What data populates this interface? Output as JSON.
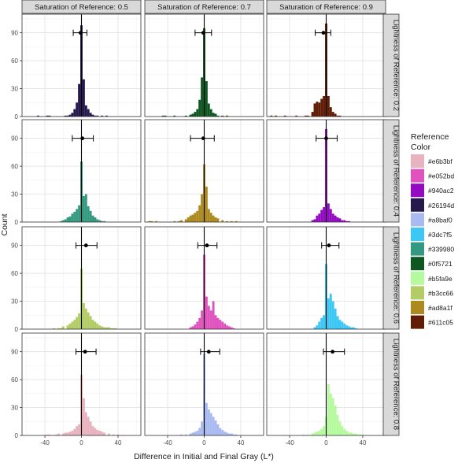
{
  "chart_data": {
    "type": "histogram-facet",
    "xlabel": "Difference in Initial and Final Gray (L*)",
    "ylabel": "Count",
    "x_ticks": [
      -40,
      0,
      40
    ],
    "y_ticks": [
      0,
      30,
      60,
      90
    ],
    "xlim": [
      -65,
      65
    ],
    "ylim": [
      0,
      110
    ],
    "col_strips": [
      "Saturation of Reference: 0.5",
      "Saturation of Reference: 0.7",
      "Saturation of Reference: 0.9"
    ],
    "row_strips": [
      "Lightness of Reference: 0.2",
      "Lightness of Reference: 0.4",
      "Lightness of Reference: 0.6",
      "Lightness of Reference: 0.8"
    ],
    "grid": true,
    "legend": {
      "title": "Reference\nColor",
      "title_lines": [
        "Reference",
        "Color"
      ],
      "position": "right",
      "entries": [
        "#e6b3bf",
        "#e052bd",
        "#940ac2",
        "#26194d",
        "#a8baf0",
        "#3dc7f5",
        "#339980",
        "#0f5721",
        "#b5fa9e",
        "#b3cc66",
        "#ad8a1f",
        "#611c05"
      ]
    },
    "bin_width": 2.5,
    "panels": [
      {
        "row": 0,
        "col": 0,
        "color": "#26194d",
        "mean": -1,
        "ci": [
          -9,
          6
        ],
        "bins": [
          [
            -47.5,
            1
          ],
          [
            -37.5,
            1
          ],
          [
            -35,
            1
          ],
          [
            -17.5,
            1
          ],
          [
            -15,
            1
          ],
          [
            -12.5,
            2
          ],
          [
            -10,
            4
          ],
          [
            -7.5,
            8
          ],
          [
            -5,
            15
          ],
          [
            -2.5,
            35
          ],
          [
            0,
            98
          ],
          [
            2.5,
            40
          ],
          [
            5,
            12
          ],
          [
            7.5,
            8
          ],
          [
            10,
            4
          ],
          [
            12.5,
            2
          ],
          [
            15,
            1
          ],
          [
            17.5,
            1
          ],
          [
            22.5,
            1
          ],
          [
            27.5,
            1
          ]
        ]
      },
      {
        "row": 0,
        "col": 1,
        "color": "#0f5721",
        "mean": -1,
        "ci": [
          -10,
          8
        ],
        "bins": [
          [
            -45,
            1
          ],
          [
            -42.5,
            1
          ],
          [
            -32.5,
            1
          ],
          [
            -20,
            1
          ],
          [
            -15,
            2
          ],
          [
            -12.5,
            3
          ],
          [
            -10,
            5
          ],
          [
            -7.5,
            8
          ],
          [
            -5,
            18
          ],
          [
            -2.5,
            42
          ],
          [
            0,
            95
          ],
          [
            2.5,
            38
          ],
          [
            5,
            14
          ],
          [
            7.5,
            8
          ],
          [
            10,
            4
          ],
          [
            12.5,
            3
          ],
          [
            15,
            1
          ],
          [
            20,
            1
          ],
          [
            25,
            1
          ]
        ]
      },
      {
        "row": 0,
        "col": 2,
        "color": "#611c05",
        "mean": -3,
        "ci": [
          -12,
          5
        ],
        "bins": [
          [
            -60,
            1
          ],
          [
            -55,
            1
          ],
          [
            -45,
            1
          ],
          [
            -32.5,
            1
          ],
          [
            -22.5,
            1
          ],
          [
            -20,
            1
          ],
          [
            -15,
            5
          ],
          [
            -12.5,
            14
          ],
          [
            -10,
            16
          ],
          [
            -7.5,
            15
          ],
          [
            -5,
            19
          ],
          [
            -2.5,
            22
          ],
          [
            0,
            100
          ],
          [
            2.5,
            22
          ],
          [
            5,
            10
          ],
          [
            7.5,
            5
          ],
          [
            10,
            3
          ],
          [
            12.5,
            1
          ],
          [
            15,
            1
          ]
        ]
      },
      {
        "row": 1,
        "col": 0,
        "color": "#339980",
        "mean": 1,
        "ci": [
          -10,
          13
        ],
        "bins": [
          [
            -22.5,
            1
          ],
          [
            -20,
            2
          ],
          [
            -17.5,
            3
          ],
          [
            -15,
            5
          ],
          [
            -12.5,
            6
          ],
          [
            -10,
            9
          ],
          [
            -7.5,
            11
          ],
          [
            -5,
            14
          ],
          [
            -2.5,
            18
          ],
          [
            0,
            65
          ],
          [
            2.5,
            28
          ],
          [
            5,
            30
          ],
          [
            7.5,
            17
          ],
          [
            10,
            12
          ],
          [
            12.5,
            7
          ],
          [
            15,
            5
          ],
          [
            17.5,
            3
          ],
          [
            20,
            2
          ],
          [
            22.5,
            1
          ],
          [
            25,
            1
          ]
        ]
      },
      {
        "row": 1,
        "col": 1,
        "color": "#ad8a1f",
        "mean": -1,
        "ci": [
          -15,
          11
        ],
        "bins": [
          [
            -60,
            1
          ],
          [
            -57.5,
            1
          ],
          [
            -52.5,
            1
          ],
          [
            -32.5,
            1
          ],
          [
            -27.5,
            1
          ],
          [
            -25,
            2
          ],
          [
            -20,
            3
          ],
          [
            -17.5,
            5
          ],
          [
            -15,
            7
          ],
          [
            -12.5,
            8
          ],
          [
            -10,
            10
          ],
          [
            -7.5,
            12
          ],
          [
            -5,
            18
          ],
          [
            -2.5,
            30
          ],
          [
            0,
            62
          ],
          [
            2.5,
            38
          ],
          [
            5,
            14
          ],
          [
            7.5,
            10
          ],
          [
            10,
            7
          ],
          [
            12.5,
            5
          ],
          [
            15,
            4
          ],
          [
            20,
            2
          ],
          [
            25,
            1
          ],
          [
            30,
            1
          ],
          [
            35,
            1
          ]
        ]
      },
      {
        "row": 1,
        "col": 2,
        "color": "#940ac2",
        "mean": 0,
        "ci": [
          -11,
          12
        ],
        "bins": [
          [
            -15,
            2
          ],
          [
            -12.5,
            3
          ],
          [
            -10,
            7
          ],
          [
            -7.5,
            9
          ],
          [
            -5,
            13
          ],
          [
            -2.5,
            16
          ],
          [
            0,
            100
          ],
          [
            2.5,
            20
          ],
          [
            5,
            14
          ],
          [
            7.5,
            9
          ],
          [
            10,
            7
          ],
          [
            12.5,
            5
          ],
          [
            15,
            4
          ],
          [
            17.5,
            2
          ],
          [
            20,
            2
          ],
          [
            22.5,
            1
          ],
          [
            25,
            1
          ]
        ]
      },
      {
        "row": 2,
        "col": 0,
        "color": "#b3cc66",
        "mean": 5,
        "ci": [
          -6,
          17
        ],
        "bins": [
          [
            -30,
            1
          ],
          [
            -25,
            1
          ],
          [
            -22.5,
            1
          ],
          [
            -20,
            3
          ],
          [
            -15,
            4
          ],
          [
            -12.5,
            6
          ],
          [
            -10,
            8
          ],
          [
            -7.5,
            10
          ],
          [
            -5,
            13
          ],
          [
            -2.5,
            17
          ],
          [
            0,
            65
          ],
          [
            2.5,
            28
          ],
          [
            5,
            22
          ],
          [
            7.5,
            18
          ],
          [
            10,
            14
          ],
          [
            12.5,
            10
          ],
          [
            15,
            8
          ],
          [
            17.5,
            6
          ],
          [
            20,
            4
          ],
          [
            22.5,
            3
          ],
          [
            25,
            2
          ],
          [
            27.5,
            2
          ],
          [
            30,
            2
          ],
          [
            32.5,
            1
          ],
          [
            35,
            1
          ],
          [
            37.5,
            1
          ]
        ]
      },
      {
        "row": 2,
        "col": 1,
        "color": "#e052bd",
        "mean": 3,
        "ci": [
          -7,
          14
        ],
        "bins": [
          [
            -15,
            2
          ],
          [
            -12.5,
            3
          ],
          [
            -10,
            5
          ],
          [
            -7.5,
            8
          ],
          [
            -5,
            12
          ],
          [
            -2.5,
            20
          ],
          [
            0,
            80
          ],
          [
            2.5,
            35
          ],
          [
            5,
            25
          ],
          [
            7.5,
            20
          ],
          [
            10,
            30
          ],
          [
            12.5,
            15
          ],
          [
            15,
            12
          ],
          [
            17.5,
            10
          ],
          [
            20,
            8
          ],
          [
            22.5,
            6
          ],
          [
            25,
            4
          ],
          [
            27.5,
            3
          ],
          [
            30,
            2
          ],
          [
            32.5,
            1
          ]
        ]
      },
      {
        "row": 2,
        "col": 2,
        "color": "#3dc7f5",
        "mean": 3,
        "ci": [
          -5,
          14
        ],
        "bins": [
          [
            -12.5,
            2
          ],
          [
            -10,
            4
          ],
          [
            -7.5,
            8
          ],
          [
            -5,
            12
          ],
          [
            -2.5,
            15
          ],
          [
            0,
            70
          ],
          [
            2.5,
            33
          ],
          [
            5,
            38
          ],
          [
            7.5,
            30
          ],
          [
            10,
            22
          ],
          [
            12.5,
            14
          ],
          [
            15,
            10
          ],
          [
            17.5,
            8
          ],
          [
            20,
            6
          ],
          [
            22.5,
            4
          ],
          [
            25,
            3
          ],
          [
            27.5,
            2
          ],
          [
            30,
            2
          ],
          [
            32.5,
            1
          ]
        ]
      },
      {
        "row": 3,
        "col": 0,
        "color": "#e6b3bf",
        "mean": 4,
        "ci": [
          -6,
          16
        ],
        "bins": [
          [
            -37.5,
            1
          ],
          [
            -35,
            1
          ],
          [
            -27.5,
            1
          ],
          [
            -25,
            2
          ],
          [
            -20,
            2
          ],
          [
            -17.5,
            3
          ],
          [
            -15,
            3
          ],
          [
            -12.5,
            4
          ],
          [
            -10,
            5
          ],
          [
            -7.5,
            7
          ],
          [
            -5,
            10
          ],
          [
            -2.5,
            12
          ],
          [
            0,
            65
          ],
          [
            2.5,
            40
          ],
          [
            5,
            25
          ],
          [
            7.5,
            20
          ],
          [
            10,
            15
          ],
          [
            12.5,
            10
          ],
          [
            15,
            8
          ],
          [
            17.5,
            6
          ],
          [
            20,
            5
          ],
          [
            22.5,
            4
          ],
          [
            25,
            3
          ],
          [
            30,
            2
          ],
          [
            35,
            1
          ],
          [
            40,
            1
          ]
        ]
      },
      {
        "row": 3,
        "col": 1,
        "color": "#a8baf0",
        "mean": 5,
        "ci": [
          -4,
          17
        ],
        "bins": [
          [
            -25,
            1
          ],
          [
            -20,
            1
          ],
          [
            -15,
            2
          ],
          [
            -12.5,
            3
          ],
          [
            -10,
            4
          ],
          [
            -7.5,
            5
          ],
          [
            -5,
            8
          ],
          [
            -2.5,
            15
          ],
          [
            0,
            88
          ],
          [
            2.5,
            35
          ],
          [
            5,
            28
          ],
          [
            7.5,
            24
          ],
          [
            10,
            20
          ],
          [
            12.5,
            16
          ],
          [
            15,
            12
          ],
          [
            17.5,
            8
          ],
          [
            20,
            6
          ],
          [
            22.5,
            4
          ],
          [
            25,
            3
          ],
          [
            27.5,
            2
          ],
          [
            30,
            2
          ],
          [
            32.5,
            1
          ],
          [
            35,
            1
          ]
        ]
      },
      {
        "row": 3,
        "col": 2,
        "color": "#b5fa9e",
        "mean": 7,
        "ci": [
          -3,
          20
        ],
        "bins": [
          [
            -25,
            1
          ],
          [
            -20,
            1
          ],
          [
            -15,
            2
          ],
          [
            -12.5,
            3
          ],
          [
            -10,
            4
          ],
          [
            -7.5,
            5
          ],
          [
            -5,
            7
          ],
          [
            -2.5,
            10
          ],
          [
            0,
            20
          ],
          [
            2.5,
            55
          ],
          [
            5,
            45
          ],
          [
            7.5,
            40
          ],
          [
            10,
            32
          ],
          [
            12.5,
            22
          ],
          [
            15,
            15
          ],
          [
            17.5,
            10
          ],
          [
            20,
            7
          ],
          [
            22.5,
            5
          ],
          [
            25,
            3
          ],
          [
            27.5,
            3
          ],
          [
            30,
            2
          ],
          [
            32.5,
            2
          ],
          [
            35,
            1
          ],
          [
            37.5,
            1
          ],
          [
            40,
            1
          ]
        ]
      }
    ]
  }
}
